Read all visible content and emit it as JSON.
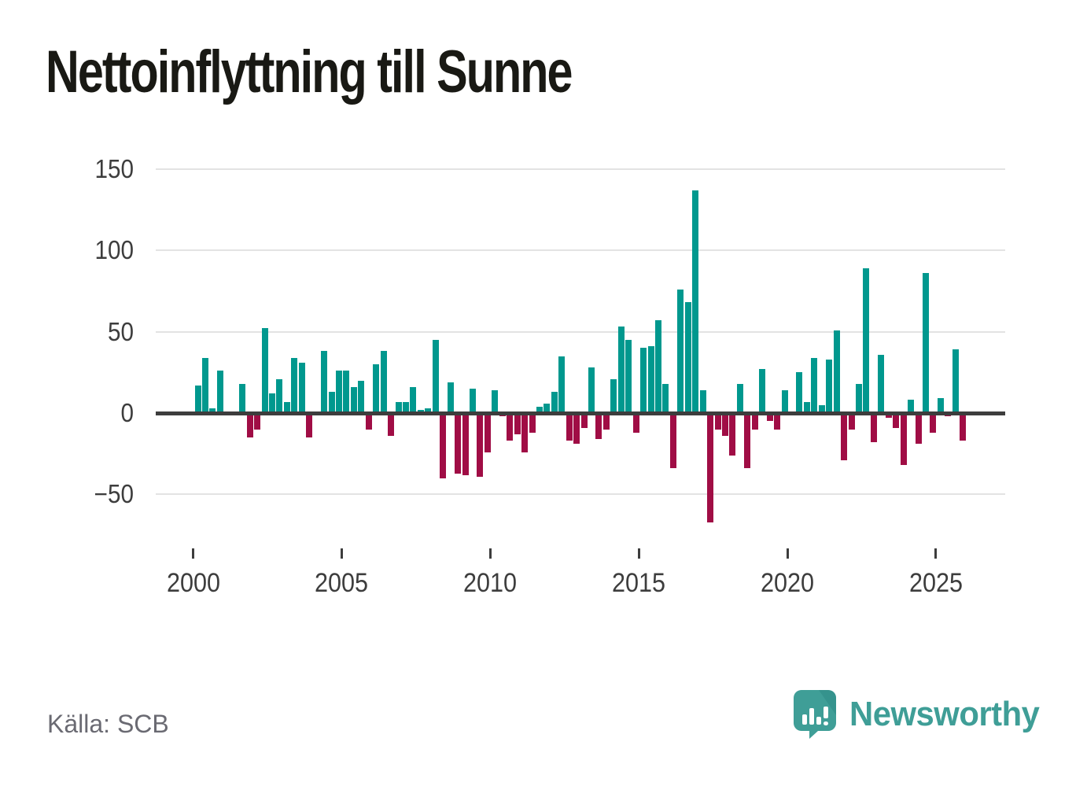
{
  "page": {
    "background": "#ffffff"
  },
  "header": {
    "title": "Nettoinflyttning till Sunne"
  },
  "footer": {
    "source": "Källa: SCB",
    "brand": "Newsworthy",
    "brand_icon": "newsworthy-bubble-bar-chart-icon"
  },
  "chart_data": {
    "type": "bar",
    "title": "Nettoinflyttning till Sunne",
    "frequency": "quarterly",
    "grid": "horizontal",
    "legend": "none",
    "ylim": [
      -83,
      150
    ],
    "yticks": [
      150,
      100,
      50,
      0,
      -50
    ],
    "ytick_labels": [
      "150",
      "100",
      "50",
      "0",
      "−50"
    ],
    "xticks": [
      2000,
      2005,
      2010,
      2015,
      2020,
      2025
    ],
    "xtick_labels": [
      "2000",
      "2005",
      "2010",
      "2015",
      "2020",
      "2025"
    ],
    "colors": {
      "positive": "#00988e",
      "negative": "#a00d45",
      "gridline": "#e3e3e3",
      "axis": "#3d3d3d",
      "tick_label": "#3d3d3d",
      "title": "#191914",
      "source_text": "#6a6a72",
      "brand_teal": "#3f9e97",
      "brand_teal_dark": "#2e8b85"
    },
    "series": [
      {
        "name": "Nettoinflyttning",
        "values_by_year": [
          {
            "year": 2000,
            "q": [
              17,
              34,
              3,
              26
            ]
          },
          {
            "year": 2001,
            "q": [
              0,
              0,
              18,
              -15
            ]
          },
          {
            "year": 2002,
            "q": [
              -10,
              52,
              12,
              21
            ]
          },
          {
            "year": 2003,
            "q": [
              7,
              34,
              31,
              -15
            ]
          },
          {
            "year": 2004,
            "q": [
              0,
              38,
              13,
              26
            ]
          },
          {
            "year": 2005,
            "q": [
              26,
              16,
              20,
              -10
            ]
          },
          {
            "year": 2006,
            "q": [
              30,
              38,
              -14,
              7
            ]
          },
          {
            "year": 2007,
            "q": [
              7,
              16,
              2,
              3
            ]
          },
          {
            "year": 2008,
            "q": [
              45,
              -40,
              19,
              -37
            ]
          },
          {
            "year": 2009,
            "q": [
              -38,
              15,
              -39,
              -24
            ]
          },
          {
            "year": 2010,
            "q": [
              14,
              -2,
              -17,
              -13
            ]
          },
          {
            "year": 2011,
            "q": [
              -24,
              -12,
              4,
              6
            ]
          },
          {
            "year": 2012,
            "q": [
              13,
              35,
              -17,
              -19
            ]
          },
          {
            "year": 2013,
            "q": [
              -9,
              28,
              -16,
              -10
            ]
          },
          {
            "year": 2014,
            "q": [
              21,
              53,
              45,
              -12
            ]
          },
          {
            "year": 2015,
            "q": [
              40,
              41,
              57,
              18
            ]
          },
          {
            "year": 2016,
            "q": [
              -34,
              76,
              68,
              137
            ]
          },
          {
            "year": 2017,
            "q": [
              14,
              -67,
              -10,
              -14
            ]
          },
          {
            "year": 2018,
            "q": [
              -26,
              18,
              -34,
              -10
            ]
          },
          {
            "year": 2019,
            "q": [
              27,
              -5,
              -10,
              14
            ]
          },
          {
            "year": 2020,
            "q": [
              0,
              25,
              7,
              34
            ]
          },
          {
            "year": 2021,
            "q": [
              5,
              33,
              51,
              -29
            ]
          },
          {
            "year": 2022,
            "q": [
              -10,
              18,
              89,
              -18
            ]
          },
          {
            "year": 2023,
            "q": [
              36,
              -3,
              -9,
              -32
            ]
          },
          {
            "year": 2024,
            "q": [
              8,
              -19,
              86,
              -12
            ]
          },
          {
            "year": 2025,
            "q": [
              9,
              -2,
              39,
              -17
            ]
          }
        ]
      }
    ]
  }
}
